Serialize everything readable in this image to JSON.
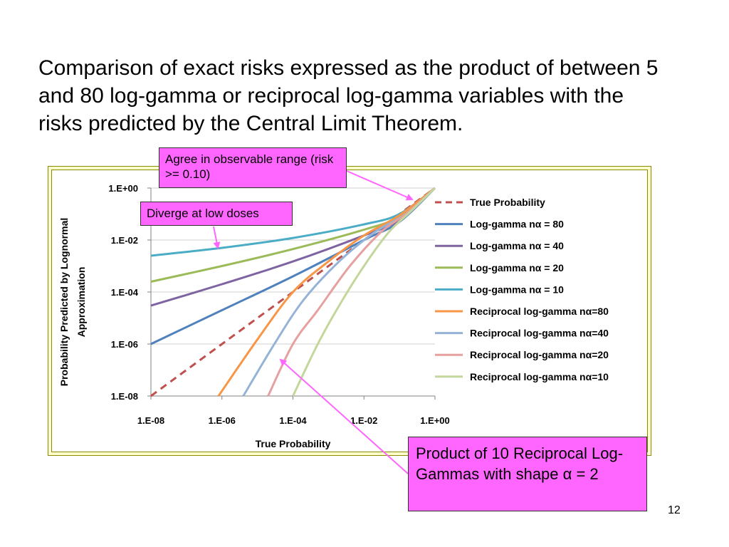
{
  "slide": {
    "text": "Comparison of exact risks expressed as the product of between 5 and 80 log-gamma or reciprocal log-gamma variables with the risks predicted by the Central Limit Theorem.",
    "page_number": "12"
  },
  "callouts": {
    "agree": "Agree in observable range (risk >= 0.10)",
    "diverge": "Diverge at low doses",
    "product": "Product of 10 Reciprocal Log-Gammas with shape α = 2"
  },
  "colors": {
    "frame_bg": "#ffffcc",
    "callout_bg": "#ff66ff",
    "arrow": "#ff66ff"
  },
  "chart_data": {
    "type": "line",
    "x_scale": "log",
    "y_scale": "log",
    "xlabel": "True Probability",
    "ylabel": "Probability Predicted by Lognormal Approximation",
    "xlim": [
      1e-08,
      1
    ],
    "ylim": [
      1e-08,
      1
    ],
    "x_ticks": [
      "1.E-08",
      "1.E-06",
      "1.E-04",
      "1.E-02",
      "1.E+00"
    ],
    "y_ticks": [
      "1.E+00",
      "1.E-02",
      "1.E-04",
      "1.E-06",
      "1.E-08"
    ],
    "grid": true,
    "legend_position": "right",
    "series": [
      {
        "name": "True Probability",
        "color": "#c0504d",
        "dash": true,
        "points": [
          [
            1e-08,
            1e-08
          ],
          [
            1e-06,
            1e-06
          ],
          [
            0.0001,
            0.0001
          ],
          [
            0.01,
            0.01
          ],
          [
            1,
            1
          ]
        ]
      },
      {
        "name": "Log-gamma nα = 80",
        "color": "#4f81bd",
        "dash": false,
        "points": [
          [
            1e-08,
            1e-06
          ],
          [
            1e-06,
            2e-05
          ],
          [
            0.0001,
            0.0004
          ],
          [
            0.01,
            0.01
          ],
          [
            0.1,
            0.05
          ],
          [
            1,
            1
          ]
        ]
      },
      {
        "name": "Log-gamma nα = 40",
        "color": "#8064a2",
        "dash": false,
        "points": [
          [
            1e-08,
            3e-05
          ],
          [
            1e-06,
            0.0002
          ],
          [
            0.0001,
            0.0015
          ],
          [
            0.01,
            0.015
          ],
          [
            0.1,
            0.06
          ],
          [
            1,
            1
          ]
        ]
      },
      {
        "name": "Log-gamma nα = 20",
        "color": "#9bbb59",
        "dash": false,
        "points": [
          [
            1e-08,
            0.00025
          ],
          [
            1e-06,
            0.001
          ],
          [
            0.0001,
            0.0045
          ],
          [
            0.01,
            0.025
          ],
          [
            0.1,
            0.08
          ],
          [
            1,
            1
          ]
        ]
      },
      {
        "name": "Log-gamma nα = 10",
        "color": "#4bacc6",
        "dash": false,
        "points": [
          [
            1e-08,
            0.0025
          ],
          [
            1e-06,
            0.005
          ],
          [
            0.0001,
            0.012
          ],
          [
            0.01,
            0.04
          ],
          [
            0.1,
            0.1
          ],
          [
            1,
            1
          ]
        ]
      },
      {
        "name": "Reciprocal log-gamma nα=80",
        "color": "#f79646",
        "dash": false,
        "points": [
          [
            8e-07,
            1e-08
          ],
          [
            1e-05,
            1.5e-06
          ],
          [
            0.0001,
            0.0001
          ],
          [
            0.001,
            0.0015
          ],
          [
            0.01,
            0.015
          ],
          [
            0.1,
            0.09
          ],
          [
            1,
            1
          ]
        ]
      },
      {
        "name": "Reciprocal log-gamma nα=40",
        "color": "#95b3d7",
        "dash": false,
        "points": [
          [
            4e-06,
            1e-08
          ],
          [
            3e-05,
            1e-06
          ],
          [
            0.0002,
            5e-05
          ],
          [
            0.002,
            0.0015
          ],
          [
            0.02,
            0.02
          ],
          [
            0.15,
            0.1
          ],
          [
            1,
            1
          ]
        ]
      },
      {
        "name": "Reciprocal log-gamma nα=20",
        "color": "#e6a0a0",
        "dash": false,
        "points": [
          [
            2e-05,
            1e-08
          ],
          [
            0.0001,
            1e-06
          ],
          [
            0.0005,
            2e-05
          ],
          [
            0.004,
            0.001
          ],
          [
            0.03,
            0.02
          ],
          [
            0.15,
            0.1
          ],
          [
            1,
            1
          ]
        ]
      },
      {
        "name": "Reciprocal log-gamma nα=10",
        "color": "#c3d69b",
        "dash": false,
        "points": [
          [
            0.0001,
            1e-08
          ],
          [
            0.0005,
            1e-06
          ],
          [
            0.002,
            3e-05
          ],
          [
            0.01,
            0.001
          ],
          [
            0.05,
            0.02
          ],
          [
            0.2,
            0.12
          ],
          [
            1,
            1
          ]
        ]
      }
    ]
  }
}
